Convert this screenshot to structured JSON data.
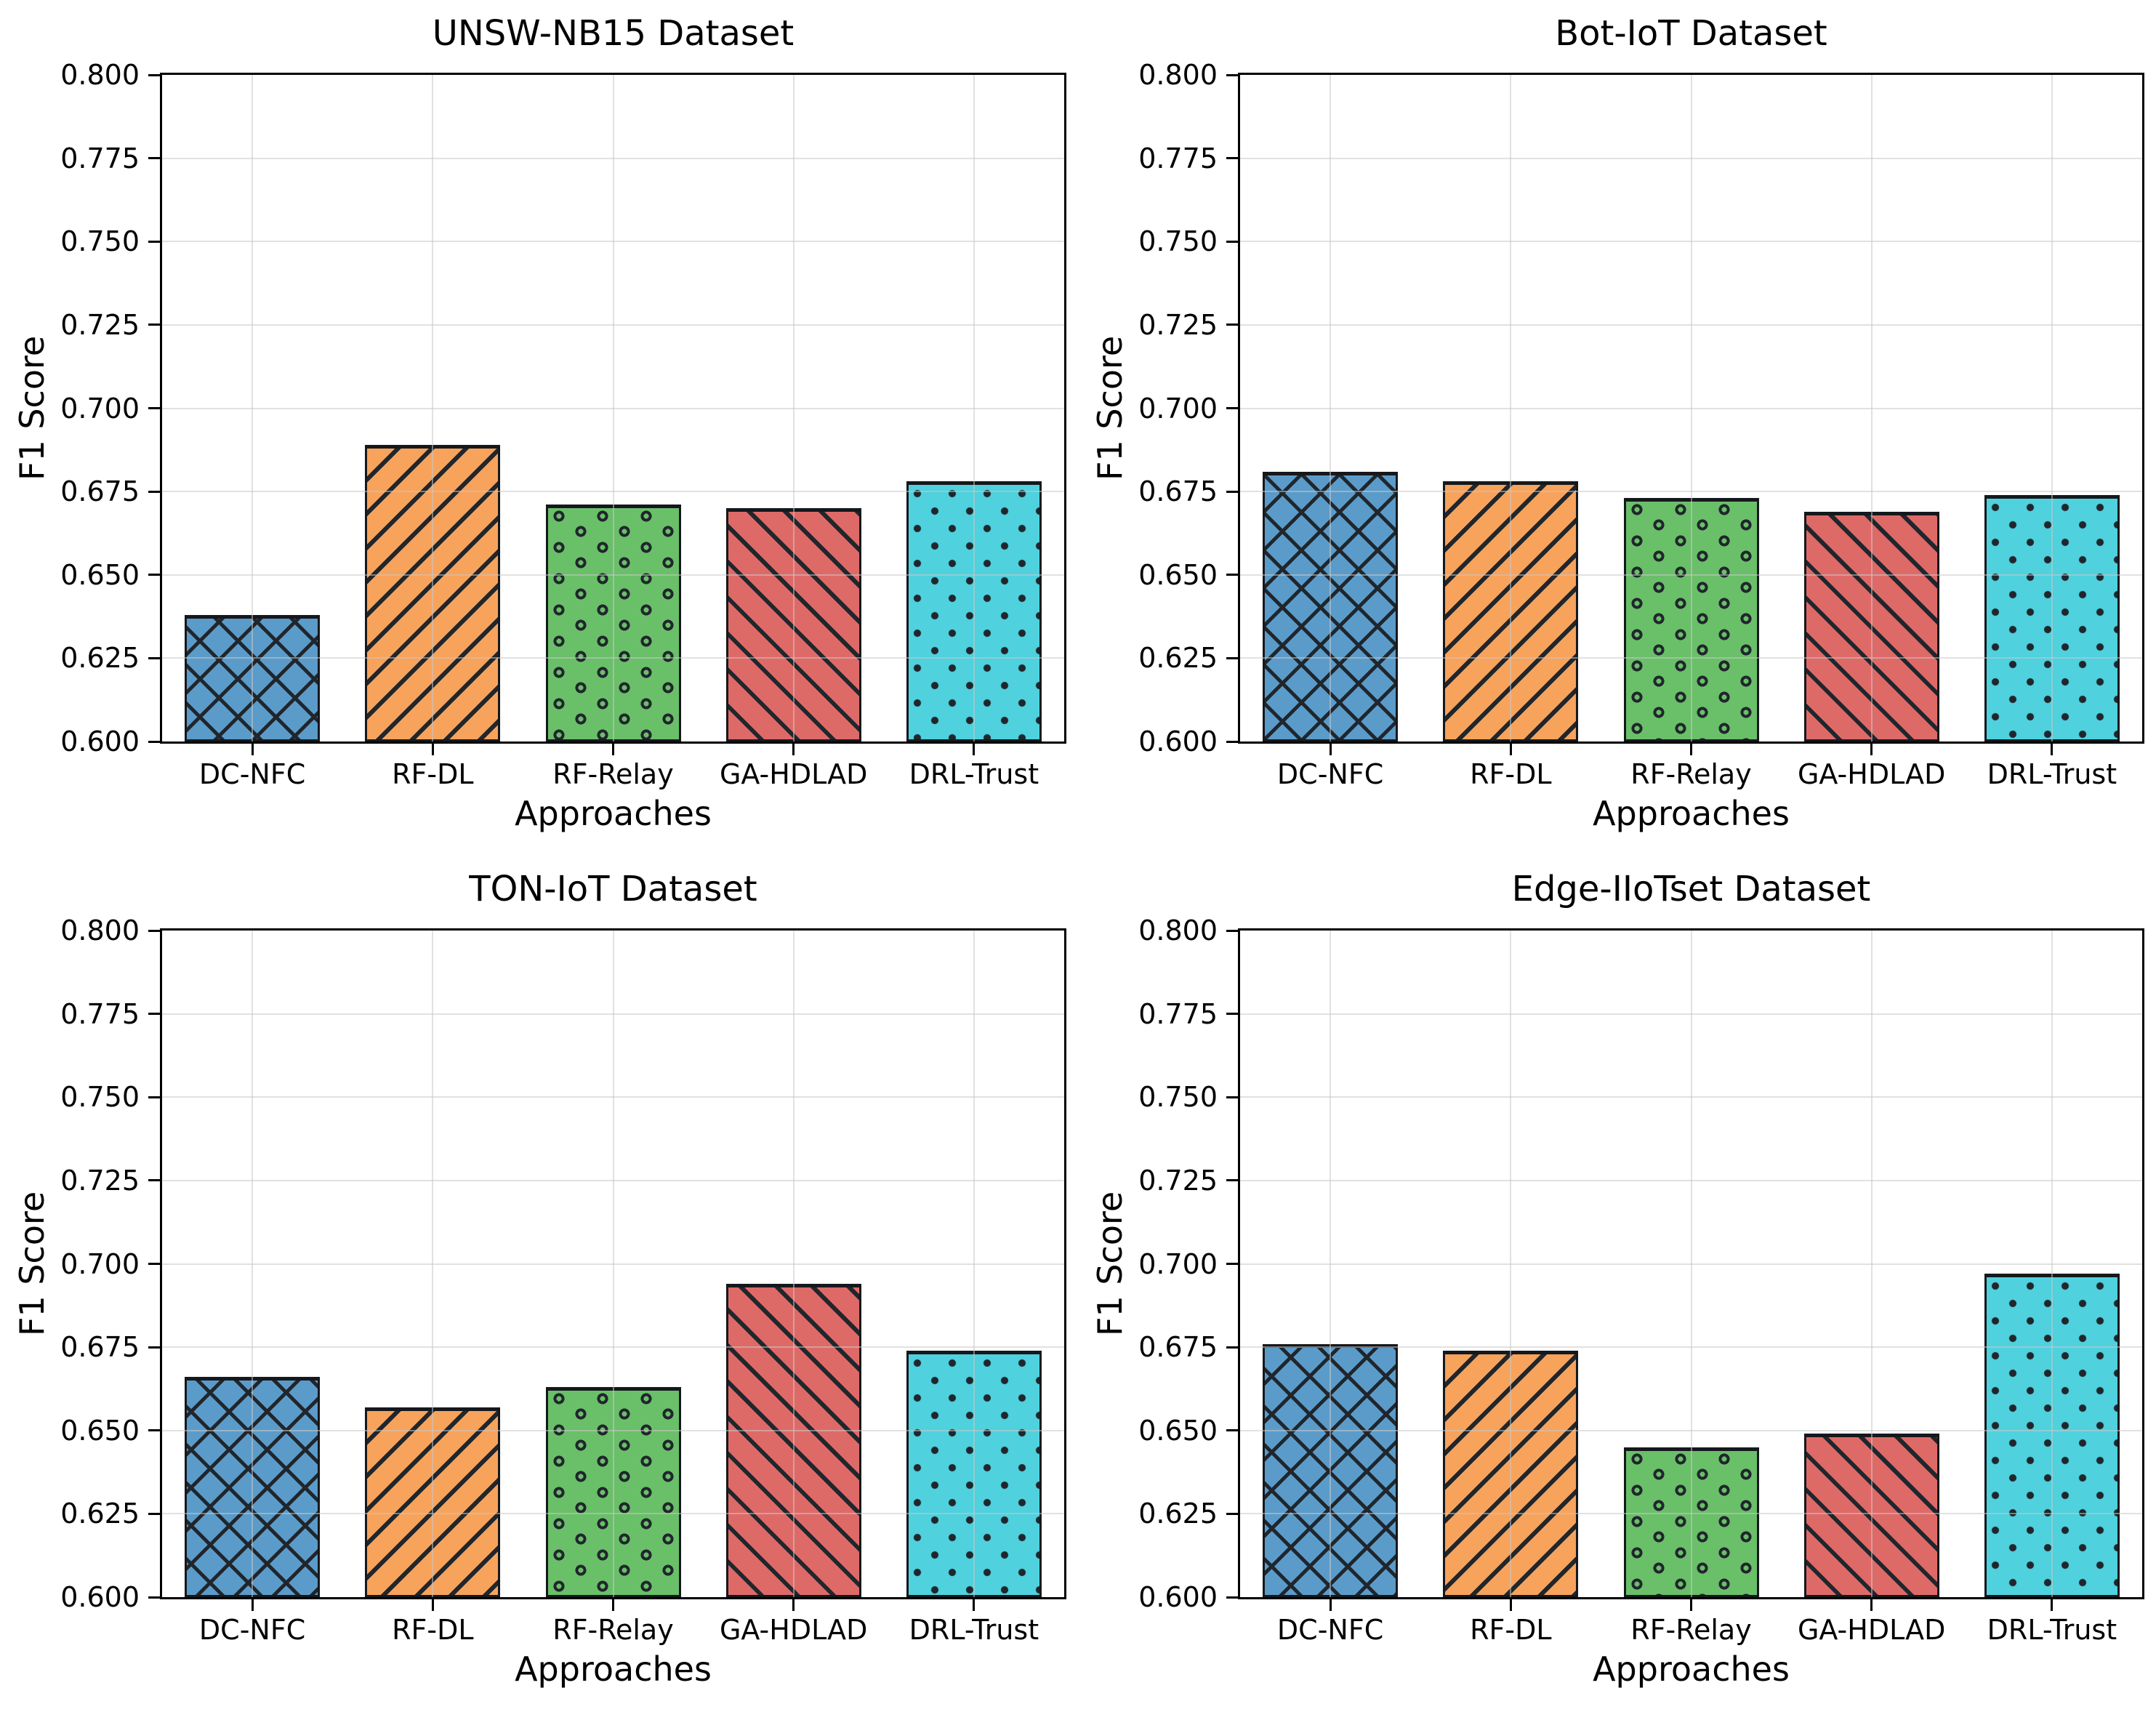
{
  "figure": {
    "ylabel": "F1 Score",
    "xlabel": "Approaches",
    "ylim": [
      0.6,
      0.8
    ],
    "ytick_step": 0.025,
    "ytick_labels": [
      "0.600",
      "0.625",
      "0.650",
      "0.675",
      "0.700",
      "0.725",
      "0.750",
      "0.775",
      "0.800"
    ],
    "grid": true,
    "legend": "none",
    "approaches": [
      {
        "label": "DC-NFC",
        "color": "#5b9bc9",
        "hatch": "xx"
      },
      {
        "label": "RF-DL",
        "color": "#f7a35c",
        "hatch": "//"
      },
      {
        "label": "RF-Relay",
        "color": "#6abf69",
        "hatch": "oo"
      },
      {
        "label": "GA-HDLAD",
        "color": "#de6a68",
        "hatch": "\\\\"
      },
      {
        "label": "DRL-Trust",
        "color": "#4fd1de",
        "hatch": ".."
      }
    ],
    "hatch_color": "#20262c",
    "bar_edge_color": "#15181c"
  },
  "chart_data": [
    {
      "type": "bar",
      "title": "UNSW-NB15 Dataset",
      "xlabel": "Approaches",
      "ylabel": "F1 Score",
      "ylim": [
        0.6,
        0.8
      ],
      "categories": [
        "DC-NFC",
        "RF-DL",
        "RF-Relay",
        "GA-HDLAD",
        "DRL-Trust"
      ],
      "values": [
        0.638,
        0.689,
        0.671,
        0.67,
        0.678
      ]
    },
    {
      "type": "bar",
      "title": "Bot-IoT Dataset",
      "xlabel": "Approaches",
      "ylabel": "F1 Score",
      "ylim": [
        0.6,
        0.8
      ],
      "categories": [
        "DC-NFC",
        "RF-DL",
        "RF-Relay",
        "GA-HDLAD",
        "DRL-Trust"
      ],
      "values": [
        0.681,
        0.678,
        0.673,
        0.669,
        0.674
      ]
    },
    {
      "type": "bar",
      "title": "TON-IoT Dataset",
      "xlabel": "Approaches",
      "ylabel": "F1 Score",
      "ylim": [
        0.6,
        0.8
      ],
      "categories": [
        "DC-NFC",
        "RF-DL",
        "RF-Relay",
        "GA-HDLAD",
        "DRL-Trust"
      ],
      "values": [
        0.666,
        0.657,
        0.663,
        0.694,
        0.674
      ]
    },
    {
      "type": "bar",
      "title": "Edge-IIoTset Dataset",
      "xlabel": "Approaches",
      "ylabel": "F1 Score",
      "ylim": [
        0.6,
        0.8
      ],
      "categories": [
        "DC-NFC",
        "RF-DL",
        "RF-Relay",
        "GA-HDLAD",
        "DRL-Trust"
      ],
      "values": [
        0.676,
        0.674,
        0.645,
        0.649,
        0.697
      ]
    }
  ]
}
